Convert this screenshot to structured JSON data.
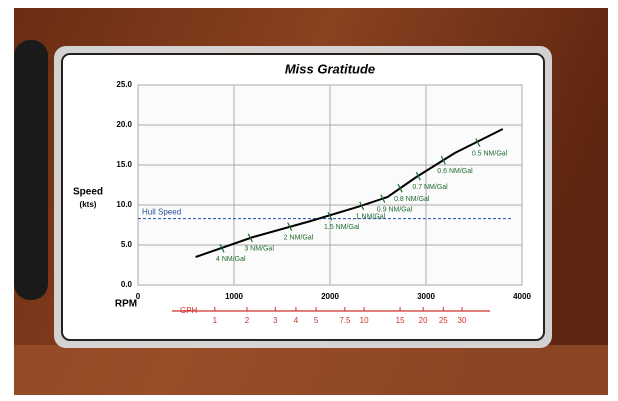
{
  "chart_data": {
    "type": "line",
    "title": "Miss Gratitude",
    "y_label": "Speed",
    "y_unit": "(kts)",
    "x_label": "RPM",
    "x": [
      600,
      1200,
      1800,
      2300,
      2600,
      2900,
      3300,
      3800
    ],
    "values": [
      3.5,
      6,
      8,
      9.8,
      11,
      13.5,
      16.5,
      19.5
    ],
    "color": "#000000",
    "xlim": [
      0,
      4000
    ],
    "xticks": [
      0,
      1000,
      2000,
      3000,
      4000
    ],
    "ylim": [
      0,
      25
    ],
    "yticks": [
      {
        "value": 0,
        "label": "0.0"
      },
      {
        "value": 5,
        "label": "5.0"
      },
      {
        "value": 10,
        "label": "10.0"
      },
      {
        "value": 15,
        "label": "15.0"
      },
      {
        "value": 20,
        "label": "20.0"
      },
      {
        "value": 25,
        "label": "25.0"
      }
    ],
    "grid": true,
    "hull_speed": {
      "label": "Hull Speed",
      "value": 8.3,
      "color": "#1f4e9c"
    },
    "annotations": [
      {
        "text": "4 NM/Gal",
        "x": 875,
        "y": 4.6
      },
      {
        "text": "3 NM/Gal",
        "x": 1170,
        "y": 5.9
      },
      {
        "text": "2 NM/Gal",
        "x": 1580,
        "y": 7.3
      },
      {
        "text": "1.5 NM/Gal",
        "x": 2000,
        "y": 8.6
      },
      {
        "text": "1 NM/Gal",
        "x": 2330,
        "y": 9.9
      },
      {
        "text": "0.9 NM/Gal",
        "x": 2550,
        "y": 10.8
      },
      {
        "text": "0.8 NM/Gal",
        "x": 2730,
        "y": 12.1
      },
      {
        "text": "0.7 NM/Gal",
        "x": 2920,
        "y": 13.6
      },
      {
        "text": "0.6 NM/Gal",
        "x": 3180,
        "y": 15.6
      },
      {
        "text": "0.5 NM/Gal",
        "x": 3540,
        "y": 17.8
      }
    ],
    "annotation_color": "#1e6b2e",
    "gph_axis": {
      "label": "GPH",
      "color": "#d0312d",
      "ticks": [
        {
          "x": 800,
          "value": 1
        },
        {
          "x": 1135,
          "value": 2
        },
        {
          "x": 1430,
          "value": 3
        },
        {
          "x": 1645,
          "value": 4
        },
        {
          "x": 1855,
          "value": 5
        },
        {
          "x": 2155,
          "value": 7.5
        },
        {
          "x": 2355,
          "value": 10
        },
        {
          "x": 2730,
          "value": 15
        },
        {
          "x": 2970,
          "value": 20
        },
        {
          "x": 3180,
          "value": 25
        },
        {
          "x": 3375,
          "value": 30
        }
      ]
    }
  }
}
